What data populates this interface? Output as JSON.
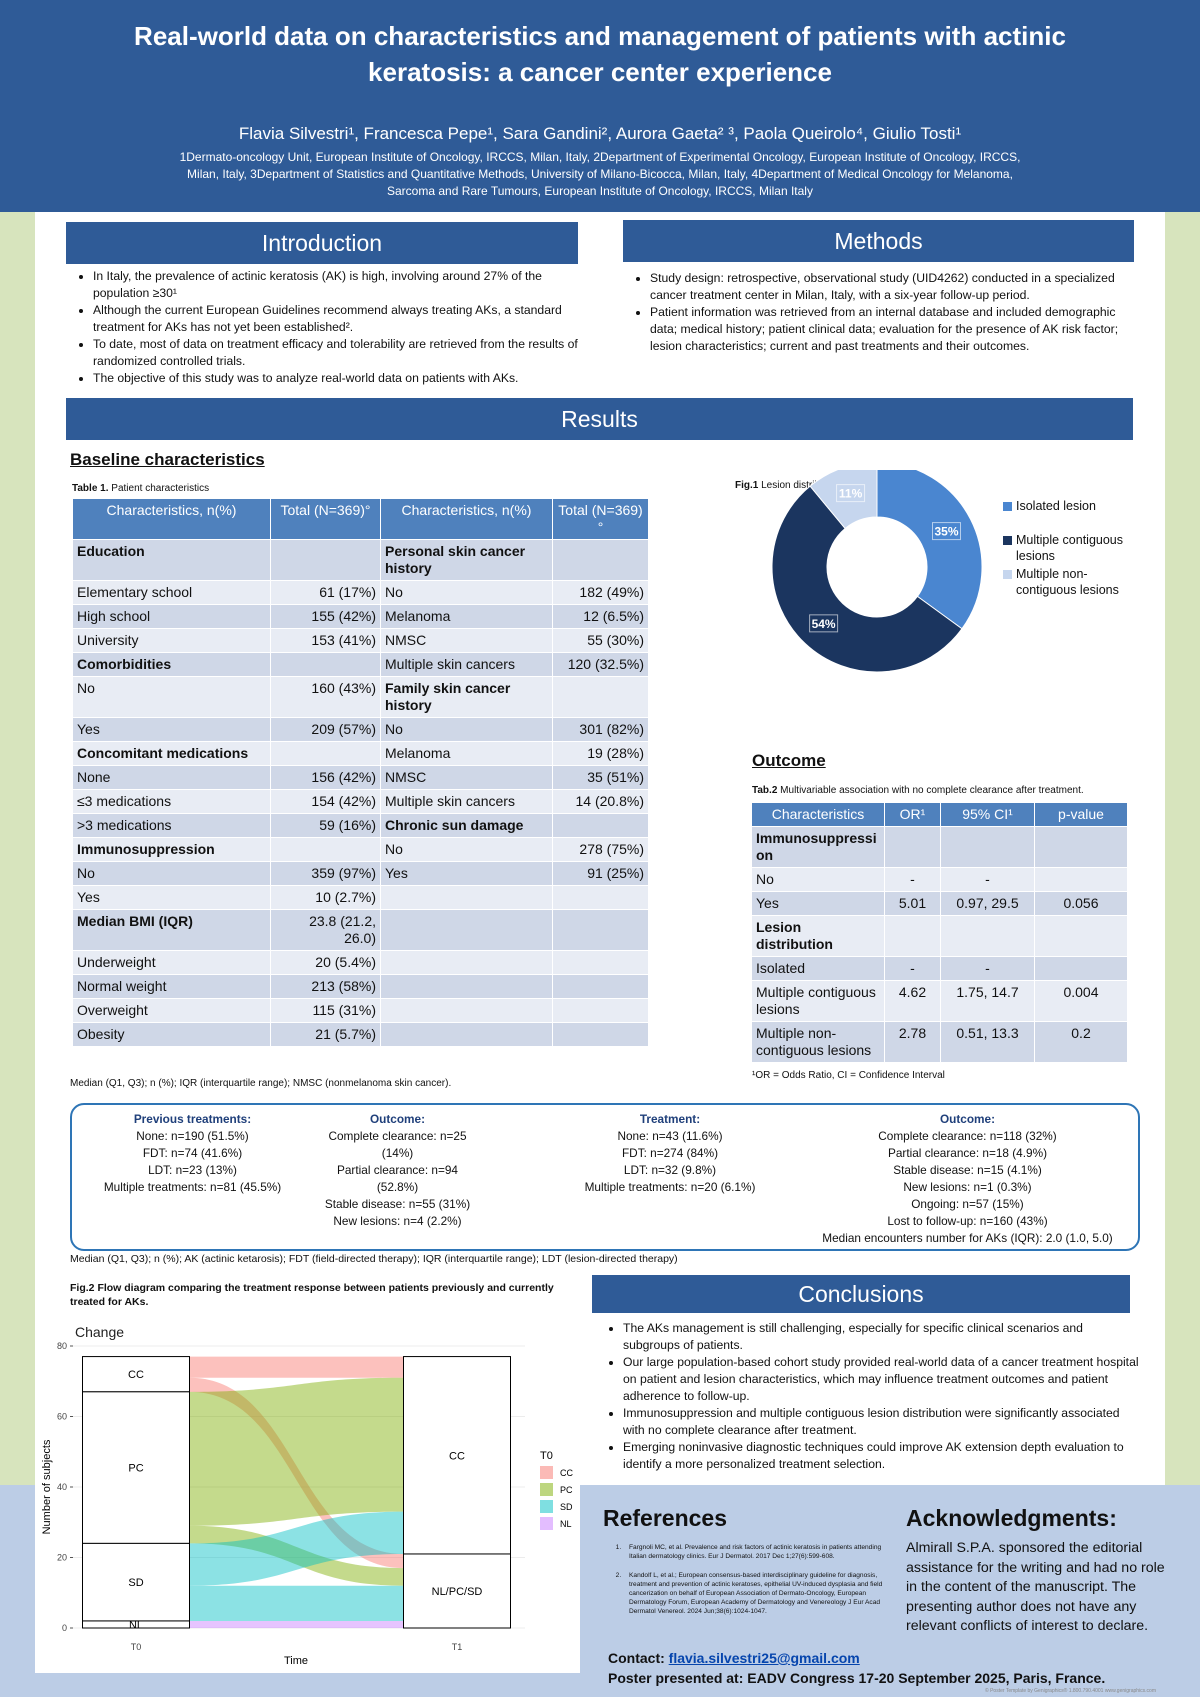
{
  "header": {
    "title": "Real-world data on characteristics and management of patients with actinic keratosis: a cancer center experience",
    "authors": "Flavia Silvestri¹, Francesca Pepe¹, Sara Gandini², Aurora Gaeta² ³, Paola Queirolo⁴, Giulio Tosti¹",
    "affiliations": "1Dermato-oncology Unit, European Institute of Oncology, IRCCS, Milan, Italy, 2Department of Experimental Oncology, European Institute of Oncology, IRCCS, Milan, Italy, 3Department of Statistics and Quantitative Methods, University of Milano-Bicocca, Milan, Italy, 4Department of Medical Oncology for Melanoma, Sarcoma and Rare Tumours, European Institute of Oncology, IRCCS, Milan Italy"
  },
  "introduction": {
    "heading": "Introduction",
    "bullets": [
      "In Italy, the prevalence of actinic keratosis (AK) is high, involving around 27% of the population ≥30¹",
      "Although the current European Guidelines recommend always treating AKs, a standard treatment for AKs has not yet been established².",
      "To date, most of data on treatment efficacy and tolerability are retrieved from the results of randomized controlled trials.",
      "The objective of this study was to analyze real-world data on patients with AKs."
    ]
  },
  "methods": {
    "heading": "Methods",
    "bullets": [
      "Study design: retrospective, observational study (UID4262) conducted in a specialized cancer treatment center in Milan, Italy, with a six-year follow-up period.",
      "Patient information was retrieved from an internal database and included demographic data; medical history; patient clinical data; evaluation for the presence of AK risk factor; lesion characteristics; current and past treatments and their outcomes."
    ]
  },
  "results": {
    "heading": "Results",
    "baseline_heading": "Baseline characteristics",
    "table1": {
      "caption_label": "Table 1.",
      "caption": "Patient characteristics",
      "header": [
        "Characteristics, n(%)",
        "Total (N=369)°",
        "Characteristics, n(%)",
        "Total (N=369)°"
      ],
      "rows": [
        [
          "Education",
          null,
          "Personal skin cancer history",
          null
        ],
        [
          "Elementary school",
          "61 (17%)",
          "No",
          "182 (49%)"
        ],
        [
          "High school",
          "155 (42%)",
          "Melanoma",
          "12 (6.5%)"
        ],
        [
          "University",
          "153 (41%)",
          "NMSC",
          "55 (30%)"
        ],
        [
          "Comorbidities",
          null,
          "Multiple skin cancers",
          "120 (32.5%)"
        ],
        [
          "No",
          "160 (43%)",
          "Family skin cancer history",
          null
        ],
        [
          "Yes",
          "209 (57%)",
          "No",
          "301 (82%)"
        ],
        [
          "Concomitant medications",
          null,
          "Melanoma",
          "19 (28%)"
        ],
        [
          "None",
          "156 (42%)",
          "NMSC",
          "35 (51%)"
        ],
        [
          "≤3 medications",
          "154 (42%)",
          "Multiple skin cancers",
          "14 (20.8%)"
        ],
        [
          ">3 medications",
          "59 (16%)",
          "Chronic sun damage",
          null
        ],
        [
          "Immunosuppression",
          null,
          "No",
          "278 (75%)"
        ],
        [
          "No",
          "359 (97%)",
          "Yes",
          "91 (25%)"
        ],
        [
          "Yes",
          "10 (2.7%)",
          null,
          null
        ],
        [
          "Median BMI (IQR)",
          "23.8 (21.2, 26.0)",
          null,
          null
        ],
        [
          "Underweight",
          "20 (5.4%)",
          null,
          null
        ],
        [
          "Normal weight",
          "213 (58%)",
          null,
          null
        ],
        [
          "Overweight",
          "115 (31%)",
          null,
          null
        ],
        [
          "Obesity",
          "21 (5.7%)",
          null,
          null
        ]
      ],
      "footnote": "Median (Q1, Q3); n (%); IQR (interquartile range); NMSC (nonmelanoma skin cancer)."
    },
    "fig1": {
      "caption_label": "Fig.1",
      "caption": "Lesion distribution.",
      "chart_data": {
        "type": "pie",
        "categories": [
          "Isolated lesion",
          "Multiple contiguous lesions",
          "Multiple non-contiguous lesions"
        ],
        "values": [
          35,
          54,
          11
        ],
        "value_labels": [
          "35%",
          "54%",
          "11%"
        ],
        "colors": [
          "#4a86d0",
          "#1b355f",
          "#c6d6ee"
        ]
      }
    },
    "outcome": {
      "heading": "Outcome",
      "caption_label": "Tab.2",
      "caption": "Multivariable association with no complete clearance after treatment.",
      "header": [
        "Characteristics",
        "OR¹",
        "95% CI¹",
        "p-value"
      ],
      "rows": [
        [
          "Immunosuppression",
          null,
          null,
          null
        ],
        [
          "No",
          "-",
          "-",
          null
        ],
        [
          "Yes",
          "5.01",
          "0.97, 29.5",
          "0.056"
        ],
        [
          "Lesion distribution",
          null,
          null,
          null
        ],
        [
          "Isolated",
          "-",
          "-",
          null
        ],
        [
          "Multiple contiguous lesions",
          "4.62",
          "1.75, 14.7",
          "0.004"
        ],
        [
          "Multiple non-contiguous lesions",
          "2.78",
          "0.51, 13.3",
          "0.2"
        ]
      ],
      "footnote": "¹OR = Odds Ratio, CI = Confidence Interval"
    },
    "treatments": {
      "columns": [
        {
          "heading": "Previous treatments:",
          "lines": [
            "None: n=190 (51.5%)",
            "FDT: n=74 (41.6%)",
            "LDT: n=23 (13%)",
            "Multiple treatments: n=81 (45.5%)"
          ]
        },
        {
          "heading": "Outcome:",
          "lines": [
            "Complete clearance: n=25 (14%)",
            "Partial clearance: n=94 (52.8%)",
            "Stable disease: n=55 (31%)",
            "New lesions: n=4 (2.2%)"
          ]
        },
        {
          "heading": "Treatment:",
          "lines": [
            "None: n=43 (11.6%)",
            "FDT: n=274 (84%)",
            "LDT: n=32 (9.8%)",
            "Multiple treatments: n=20 (6.1%)"
          ]
        },
        {
          "heading": "Outcome:",
          "lines": [
            "Complete clearance: n=118 (32%)",
            "Partial clearance: n=18 (4.9%)",
            "Stable disease: n=15 (4.1%)",
            "New lesions: n=1 (0.3%)",
            "Ongoing: n=57 (15%)",
            "Lost to follow-up: n=160 (43%)",
            "Median encounters number for AKs (IQR): 2.0 (1.0, 5.0)"
          ]
        }
      ],
      "footnote": "Median (Q1, Q3); n (%); AK (actinic ketarosis); FDT (field-directed therapy); IQR (interquartile range); LDT (lesion-directed therapy)"
    },
    "fig2": {
      "caption_label": "Fig.2",
      "caption": "Flow diagram comparing the treatment response between patients previously and currently treated for AKs.",
      "chart_data": {
        "type": "alluvial",
        "title": "Change",
        "y_label": "Number of subjects",
        "x_label": "Time",
        "x": [
          "T0",
          "T1"
        ],
        "ylim": [
          0,
          80
        ],
        "yticks": [
          0,
          20,
          40,
          60,
          80
        ],
        "grid": true,
        "legend_title": "T0",
        "series": [
          {
            "name": "CC",
            "color": "#f8766d"
          },
          {
            "name": "PC",
            "color": "#7cae00"
          },
          {
            "name": "SD",
            "color": "#00bfc4"
          },
          {
            "name": "NL",
            "color": "#c77cff"
          }
        ],
        "t1_nodes": [
          "CC",
          "NL/PC/SD"
        ],
        "flows": [
          {
            "from": "CC",
            "to": "CC",
            "value": 6
          },
          {
            "from": "CC",
            "to": "NL/PC/SD",
            "value": 4
          },
          {
            "from": "PC",
            "to": "CC",
            "value": 38
          },
          {
            "from": "PC",
            "to": "NL/PC/SD",
            "value": 5
          },
          {
            "from": "SD",
            "to": "CC",
            "value": 12
          },
          {
            "from": "SD",
            "to": "NL/PC/SD",
            "value": 10
          },
          {
            "from": "NL",
            "to": "NL/PC/SD",
            "value": 2
          }
        ]
      }
    }
  },
  "conclusions": {
    "heading": "Conclusions",
    "bullets": [
      "The AKs management is still challenging, especially for specific clinical scenarios and subgroups of patients.",
      "Our large population-based cohort study provided real-world data of a cancer treatment hospital on patient and lesion characteristics, which may influence treatment outcomes and patient adherence to follow-up.",
      "Immunosuppression and multiple contiguous lesion distribution were significantly associated with no complete clearance after treatment.",
      "Emerging noninvasive diagnostic techniques could improve AK extension depth evaluation to identify a more personalized treatment selection."
    ]
  },
  "references": {
    "heading": "References",
    "items": [
      "Fargnoli MC, et al. Prevalence and risk factors of actinic keratosis in patients attending Italian dermatology clinics. Eur J Dermatol. 2017 Dec 1;27(6):599-608.",
      "Kandolf L, et al.; European consensus-based interdisciplinary guideline for diagnosis, treatment and prevention of actinic keratoses, epithelial UV-induced dysplasia and field cancerization on behalf of European Association of Dermato-Oncology, European Dermatology Forum, European Academy of Dermatology and Venereology J Eur Acad Dermatol Venereol. 2024 Jun;38(6):1024-1047."
    ]
  },
  "acknowledgments": {
    "heading": "Acknowledgments:",
    "text": "Almirall S.P.A. sponsored the editorial assistance for the writing and had no role in the content of the manuscript. The presenting author does not have any relevant conflicts of interest to declare."
  },
  "contact": {
    "label": "Contact:",
    "email": "flavia.silvestri25@gmail.com",
    "presented": "Poster presented at: EADV Congress 17-20 September 2025, Paris, France."
  },
  "footer": "© Poster Template by Genigraphics® 1.800.790.4001 www.genigraphics.com"
}
